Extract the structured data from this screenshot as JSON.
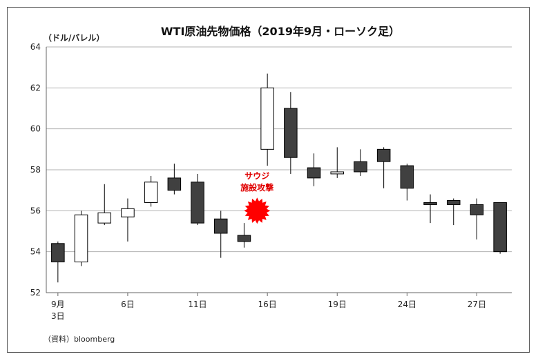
{
  "chart_data": {
    "type": "candlestick",
    "title": "WTI原油先物価格（2019年9月・ローソク足）",
    "ylabel": "（ドル/バレル）",
    "ylim": [
      52,
      64
    ],
    "yticks": [
      "52",
      "54",
      "56",
      "58",
      "60",
      "62",
      "64"
    ],
    "xticks": [
      {
        "label": "9月",
        "sub": "3日",
        "day": 3
      },
      {
        "label": "6日",
        "day": 6
      },
      {
        "label": "11日",
        "day": 11
      },
      {
        "label": "16日",
        "day": 16
      },
      {
        "label": "19日",
        "day": 19
      },
      {
        "label": "24日",
        "day": 24
      },
      {
        "label": "27日",
        "day": 27
      }
    ],
    "colors": {
      "down": "#404040",
      "up": "#ffffff",
      "outline": "#000000",
      "grid": "#b0b0b0",
      "event": "#ff0000"
    },
    "candles": [
      {
        "date": "9/3",
        "open": 54.4,
        "high": 54.5,
        "low": 52.5,
        "close": 53.5
      },
      {
        "date": "9/4",
        "open": 53.5,
        "high": 56.0,
        "low": 53.3,
        "close": 55.8
      },
      {
        "date": "9/5",
        "open": 55.4,
        "high": 57.3,
        "low": 55.3,
        "close": 55.9
      },
      {
        "date": "9/6",
        "open": 55.7,
        "high": 56.6,
        "low": 54.5,
        "close": 56.1
      },
      {
        "date": "9/9",
        "open": 56.4,
        "high": 57.7,
        "low": 56.2,
        "close": 57.4
      },
      {
        "date": "9/10",
        "open": 57.6,
        "high": 58.3,
        "low": 56.8,
        "close": 57.0
      },
      {
        "date": "9/11",
        "open": 57.4,
        "high": 57.8,
        "low": 55.3,
        "close": 55.4
      },
      {
        "date": "9/12",
        "open": 55.6,
        "high": 56.0,
        "low": 53.7,
        "close": 54.9
      },
      {
        "date": "9/13",
        "open": 54.8,
        "high": 55.4,
        "low": 54.2,
        "close": 54.5
      },
      {
        "date": "9/16",
        "open": 59.0,
        "high": 62.7,
        "low": 58.2,
        "close": 62.0
      },
      {
        "date": "9/17",
        "open": 61.0,
        "high": 61.8,
        "low": 57.8,
        "close": 58.6
      },
      {
        "date": "9/18",
        "open": 58.1,
        "high": 58.8,
        "low": 57.2,
        "close": 57.6
      },
      {
        "date": "9/19",
        "open": 57.8,
        "high": 59.1,
        "low": 57.6,
        "close": 57.9
      },
      {
        "date": "9/20",
        "open": 58.4,
        "high": 59.0,
        "low": 57.7,
        "close": 57.9
      },
      {
        "date": "9/23",
        "open": 59.0,
        "high": 59.1,
        "low": 57.1,
        "close": 58.4
      },
      {
        "date": "9/24",
        "open": 58.2,
        "high": 58.3,
        "low": 56.5,
        "close": 57.1
      },
      {
        "date": "9/25",
        "open": 56.4,
        "high": 56.8,
        "low": 55.4,
        "close": 56.3
      },
      {
        "date": "9/26",
        "open": 56.5,
        "high": 56.6,
        "low": 55.3,
        "close": 56.3
      },
      {
        "date": "9/27",
        "open": 56.3,
        "high": 56.6,
        "low": 54.6,
        "close": 55.8
      },
      {
        "date": "9/30",
        "open": 56.4,
        "high": 56.4,
        "low": 53.9,
        "close": 54.0
      }
    ],
    "annotation": {
      "line1": "サウジ",
      "line2": "施設攻撃",
      "date": "9/14"
    },
    "source": "（資料）bloomberg"
  }
}
